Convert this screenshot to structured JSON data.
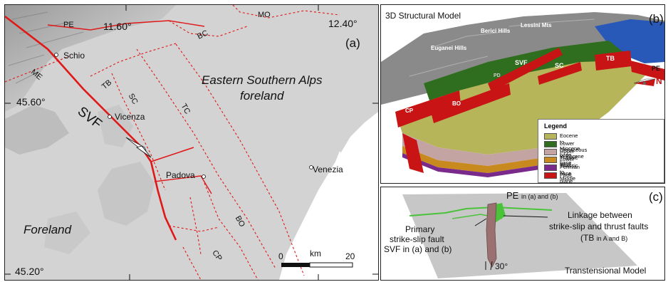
{
  "panel_a": {
    "tag": "(a)",
    "coords": {
      "lon_left": "11.60°",
      "lon_right": "12.40°",
      "lat_top": "45.60°",
      "lat_bottom": "45.20°"
    },
    "cities": [
      "Schio",
      "Vicenza",
      "Padova",
      "Venezia"
    ],
    "faults": [
      "PE",
      "BC",
      "MO",
      "ME",
      "TB",
      "SC",
      "TC",
      "SVF",
      "BO",
      "CP"
    ],
    "regions": {
      "foreland": "Foreland",
      "alps_line1": "Eastern Southern Alps",
      "alps_line2": "foreland"
    },
    "scalebar": {
      "unit": "km",
      "min": "0",
      "max": "20"
    }
  },
  "panel_b": {
    "tag": "(b)",
    "title": "3D Structural Model",
    "hills": [
      "Euganei Hills",
      "Berici Hills",
      "Lessini Mts"
    ],
    "faults": [
      "SVF",
      "SC",
      "TB",
      "PE",
      "PD",
      "CP",
      "BO"
    ],
    "north": "N",
    "legend": {
      "title": "Legend",
      "items": [
        {
          "label": "Eocene to Miocene base",
          "color": "#b7b55a"
        },
        {
          "label": "Lower Cretaceous to Eocene base",
          "color": "#2f6e1e"
        },
        {
          "label": "Upper Triassic base",
          "color": "#c4a3a3"
        },
        {
          "label": "Lower Triassic to Middle Triassic base",
          "color": "#c88a1e"
        },
        {
          "label": "Permian base",
          "color": "#7a2a8a"
        },
        {
          "label": "Fault plane",
          "color": "#c81414"
        }
      ]
    }
  },
  "panel_c": {
    "tag": "(c)",
    "pe_label": "PE",
    "pe_note": "in (a) and (b)",
    "primary_line1": "Primary",
    "primary_line2": "strike-slip fault",
    "primary_line3": "SVF in (a) and (b)",
    "linkage_line1": "Linkage between",
    "linkage_line2": "strike-slip and thrust faults",
    "linkage_line3_main": "(TB",
    "linkage_line3_small": "in A and B)",
    "angle": "30°",
    "model": "Transtensional Model"
  }
}
